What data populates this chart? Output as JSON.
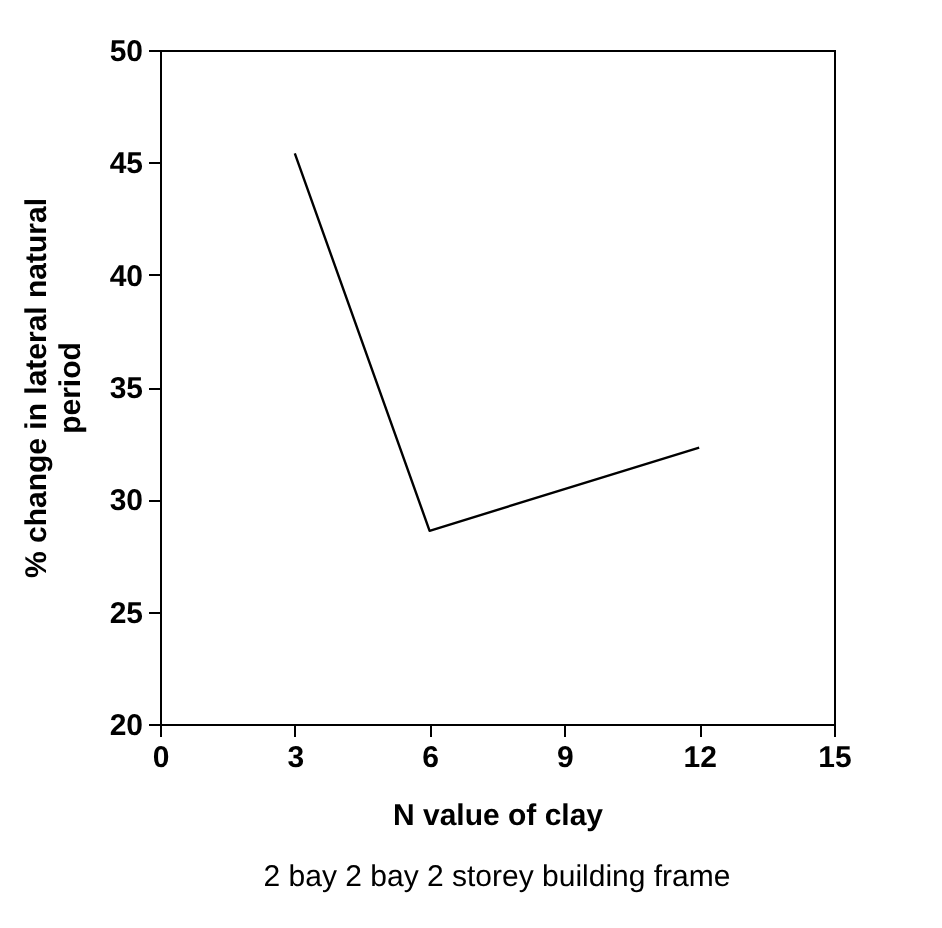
{
  "chart_data": {
    "type": "line",
    "xlabel": "N value of clay",
    "ylabel": "% change in lateral natural period",
    "x": [
      3,
      6,
      12
    ],
    "series": [
      {
        "color": "#000000",
        "values": [
          45.4,
          28.6,
          32.3
        ]
      }
    ],
    "xlim": [
      0,
      15
    ],
    "xticks": [
      0,
      3,
      6,
      9,
      12,
      15
    ],
    "ylim": [
      20,
      50
    ],
    "yticks": [
      20,
      25,
      30,
      35,
      40,
      45,
      50
    ],
    "grid": false,
    "marker": "none",
    "line_style": "solid",
    "annotations": [
      "2 bay 2 bay 2 storey building frame"
    ]
  }
}
